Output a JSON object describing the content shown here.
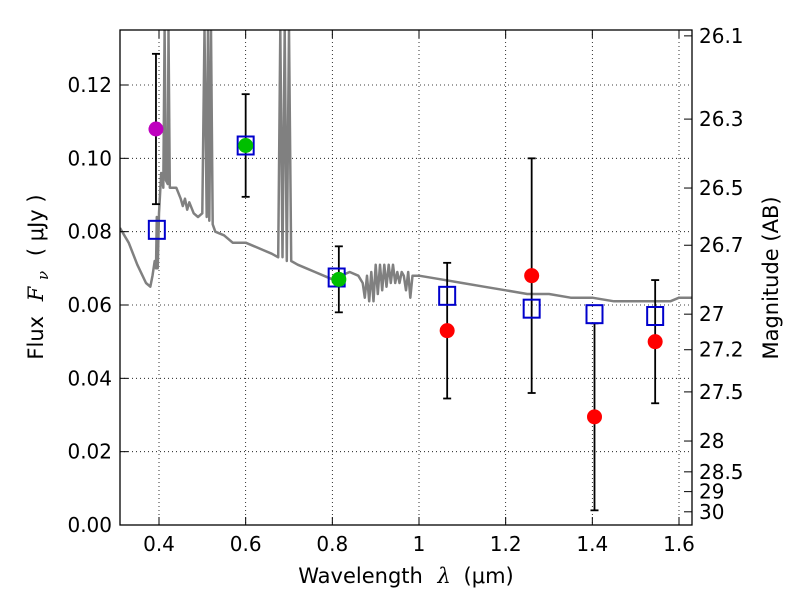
{
  "chart_data": {
    "type": "scatter",
    "xlabel": "Wavelength",
    "xlabel_symbol": "λ",
    "xlabel_unit": "(μm)",
    "ylabel": "Flux",
    "ylabel_symbol": "F",
    "ylabel_subscript": "ν",
    "ylabel_unit": "( μJy )",
    "y2label": "Magnitude (AB)",
    "xlim": [
      0.31,
      1.63
    ],
    "ylim": [
      0.0,
      0.135
    ],
    "grid": true,
    "x_ticks": [
      {
        "value": 0.4,
        "label": "0.4"
      },
      {
        "value": 0.6,
        "label": "0.6"
      },
      {
        "value": 0.8,
        "label": "0.8"
      },
      {
        "value": 1.0,
        "label": "1"
      },
      {
        "value": 1.2,
        "label": "1.2"
      },
      {
        "value": 1.4,
        "label": "1.4"
      },
      {
        "value": 1.6,
        "label": "1.6"
      }
    ],
    "y_ticks": [
      {
        "value": 0.0,
        "label": "0.00"
      },
      {
        "value": 0.02,
        "label": "0.02"
      },
      {
        "value": 0.04,
        "label": "0.04"
      },
      {
        "value": 0.06,
        "label": "0.06"
      },
      {
        "value": 0.08,
        "label": "0.08"
      },
      {
        "value": 0.1,
        "label": "0.10"
      },
      {
        "value": 0.12,
        "label": "0.12"
      }
    ],
    "y2_ticks": [
      {
        "flux": 0.1334,
        "label": "26.1"
      },
      {
        "flux": 0.1107,
        "label": "26.3"
      },
      {
        "flux": 0.0919,
        "label": "26.5"
      },
      {
        "flux": 0.0763,
        "label": "26.7"
      },
      {
        "flux": 0.0575,
        "label": "27"
      },
      {
        "flux": 0.0478,
        "label": "27.2"
      },
      {
        "flux": 0.0363,
        "label": "27.5"
      },
      {
        "flux": 0.0229,
        "label": "28"
      },
      {
        "flux": 0.0145,
        "label": "28.5"
      },
      {
        "flux": 0.0091,
        "label": "29"
      },
      {
        "flux": 0.0036,
        "label": "30"
      }
    ],
    "template_spectrum": {
      "color": "#808080",
      "points": [
        [
          0.31,
          0.081
        ],
        [
          0.33,
          0.077
        ],
        [
          0.35,
          0.071
        ],
        [
          0.37,
          0.066
        ],
        [
          0.38,
          0.065
        ],
        [
          0.385,
          0.068
        ],
        [
          0.39,
          0.072
        ],
        [
          0.393,
          0.07
        ],
        [
          0.395,
          0.084
        ],
        [
          0.397,
          0.07
        ],
        [
          0.4,
          0.085
        ],
        [
          0.405,
          0.096
        ],
        [
          0.41,
          0.092
        ],
        [
          0.413,
          0.135
        ],
        [
          0.416,
          0.094
        ],
        [
          0.42,
          0.093
        ],
        [
          0.422,
          0.135
        ],
        [
          0.425,
          0.092
        ],
        [
          0.43,
          0.092
        ],
        [
          0.44,
          0.092
        ],
        [
          0.45,
          0.089
        ],
        [
          0.455,
          0.087
        ],
        [
          0.46,
          0.089
        ],
        [
          0.465,
          0.086
        ],
        [
          0.47,
          0.088
        ],
        [
          0.48,
          0.085
        ],
        [
          0.49,
          0.084
        ],
        [
          0.5,
          0.085
        ],
        [
          0.505,
          0.135
        ],
        [
          0.51,
          0.084
        ],
        [
          0.513,
          0.135
        ],
        [
          0.516,
          0.083
        ],
        [
          0.52,
          0.135
        ],
        [
          0.524,
          0.082
        ],
        [
          0.53,
          0.08
        ],
        [
          0.55,
          0.079
        ],
        [
          0.57,
          0.077
        ],
        [
          0.6,
          0.077
        ],
        [
          0.62,
          0.076
        ],
        [
          0.64,
          0.075
        ],
        [
          0.66,
          0.074
        ],
        [
          0.675,
          0.073
        ],
        [
          0.68,
          0.135
        ],
        [
          0.685,
          0.073
        ],
        [
          0.69,
          0.135
        ],
        [
          0.695,
          0.072
        ],
        [
          0.7,
          0.135
        ],
        [
          0.705,
          0.072
        ],
        [
          0.72,
          0.071
        ],
        [
          0.74,
          0.07
        ],
        [
          0.76,
          0.069
        ],
        [
          0.78,
          0.068
        ],
        [
          0.8,
          0.067
        ],
        [
          0.82,
          0.068
        ],
        [
          0.84,
          0.069
        ],
        [
          0.86,
          0.068
        ],
        [
          0.87,
          0.066
        ],
        [
          0.875,
          0.062
        ],
        [
          0.88,
          0.068
        ],
        [
          0.885,
          0.061
        ],
        [
          0.89,
          0.069
        ],
        [
          0.895,
          0.061
        ],
        [
          0.9,
          0.071
        ],
        [
          0.905,
          0.063
        ],
        [
          0.91,
          0.071
        ],
        [
          0.915,
          0.064
        ],
        [
          0.92,
          0.071
        ],
        [
          0.925,
          0.065
        ],
        [
          0.93,
          0.071
        ],
        [
          0.935,
          0.066
        ],
        [
          0.94,
          0.071
        ],
        [
          0.945,
          0.066
        ],
        [
          0.95,
          0.069
        ],
        [
          0.955,
          0.066
        ],
        [
          0.96,
          0.069
        ],
        [
          0.965,
          0.068
        ],
        [
          0.97,
          0.064
        ],
        [
          0.975,
          0.069
        ],
        [
          0.98,
          0.062
        ],
        [
          0.985,
          0.068
        ],
        [
          0.99,
          0.068
        ],
        [
          1.0,
          0.068
        ],
        [
          1.05,
          0.067
        ],
        [
          1.1,
          0.066
        ],
        [
          1.15,
          0.065
        ],
        [
          1.2,
          0.064
        ],
        [
          1.25,
          0.063
        ],
        [
          1.3,
          0.063
        ],
        [
          1.35,
          0.062
        ],
        [
          1.4,
          0.062
        ],
        [
          1.45,
          0.061
        ],
        [
          1.5,
          0.061
        ],
        [
          1.55,
          0.061
        ],
        [
          1.58,
          0.061
        ],
        [
          1.6,
          0.062
        ],
        [
          1.63,
          0.062
        ]
      ]
    },
    "model_fluxes": {
      "color": "#0000cc",
      "marker": "square",
      "points": [
        {
          "x": 0.395,
          "y": 0.0805
        },
        {
          "x": 0.6,
          "y": 0.1035
        },
        {
          "x": 0.81,
          "y": 0.0675
        },
        {
          "x": 1.065,
          "y": 0.0625
        },
        {
          "x": 1.26,
          "y": 0.059
        },
        {
          "x": 1.405,
          "y": 0.0575
        },
        {
          "x": 1.545,
          "y": 0.057
        }
      ]
    },
    "observed": [
      {
        "x": 0.393,
        "y": 0.108,
        "err": 0.0205,
        "color": "#bf00bf"
      },
      {
        "x": 0.6,
        "y": 0.1035,
        "err": 0.014,
        "color": "#00bf00"
      },
      {
        "x": 0.815,
        "y": 0.067,
        "err": 0.009,
        "color": "#00bf00"
      },
      {
        "x": 1.065,
        "y": 0.053,
        "err": 0.0185,
        "color": "#ff0000"
      },
      {
        "x": 1.26,
        "y": 0.068,
        "err": 0.032,
        "color": "#ff0000"
      },
      {
        "x": 1.405,
        "y": 0.0295,
        "err": 0.0255,
        "color": "#ff0000"
      },
      {
        "x": 1.545,
        "y": 0.05,
        "err": 0.0168,
        "color": "#ff0000"
      }
    ]
  }
}
